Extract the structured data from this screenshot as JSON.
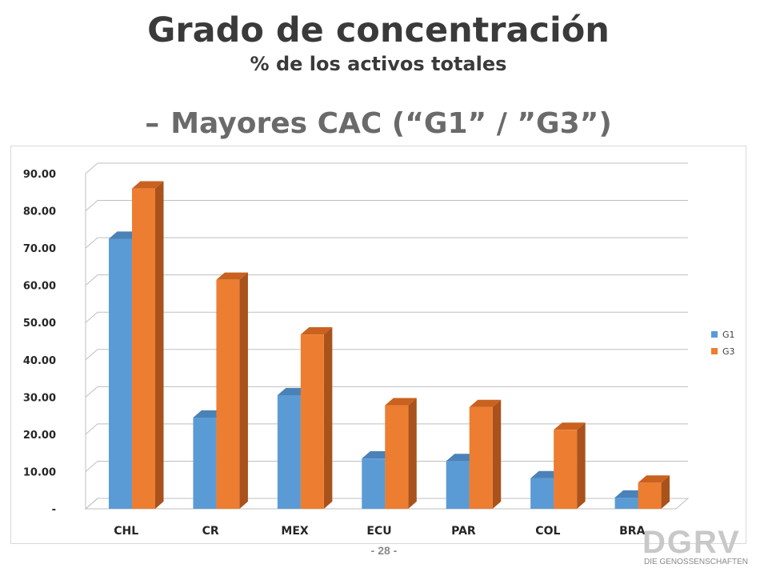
{
  "slide": {
    "title": "Grado de concentración",
    "subtitle": "% de los activos totales",
    "heading_dash": "–",
    "heading": "Mayores CAC (“G1” / ”G3”)",
    "page_number": "- 28 -",
    "logo_text": "DGRV",
    "logo_subtext": "DIE GENOSSENSCHAFTEN"
  },
  "chart_data": {
    "type": "bar",
    "title": "",
    "xlabel": "",
    "ylabel": "",
    "categories": [
      "CHL",
      "CR",
      "MEX",
      "ECU",
      "PAR",
      "COL",
      "BRA"
    ],
    "series": [
      {
        "name": "G1",
        "color": "#5b9bd5",
        "side_color": "#3d6f9c",
        "top_color": "#4a82b8",
        "values": [
          72.5,
          24.5,
          30.5,
          13.5,
          12.8,
          8.2,
          3.0
        ]
      },
      {
        "name": "G3",
        "color": "#ed7d31",
        "side_color": "#a9521c",
        "top_color": "#c9621f",
        "values": [
          86.0,
          61.5,
          46.8,
          27.8,
          27.3,
          21.2,
          7.0
        ]
      }
    ],
    "ylim": [
      0,
      90
    ],
    "yticks": [
      {
        "value": 0,
        "label": "-"
      },
      {
        "value": 10,
        "label": "10.00"
      },
      {
        "value": 20,
        "label": "20.00"
      },
      {
        "value": 30,
        "label": "30.00"
      },
      {
        "value": 40,
        "label": "40.00"
      },
      {
        "value": 50,
        "label": "50.00"
      },
      {
        "value": 60,
        "label": "60.00"
      },
      {
        "value": 70,
        "label": "70.00"
      },
      {
        "value": 80,
        "label": "80.00"
      },
      {
        "value": 90,
        "label": "90.00"
      }
    ],
    "grid": true,
    "legend_position": "right",
    "style": "3d-column"
  }
}
